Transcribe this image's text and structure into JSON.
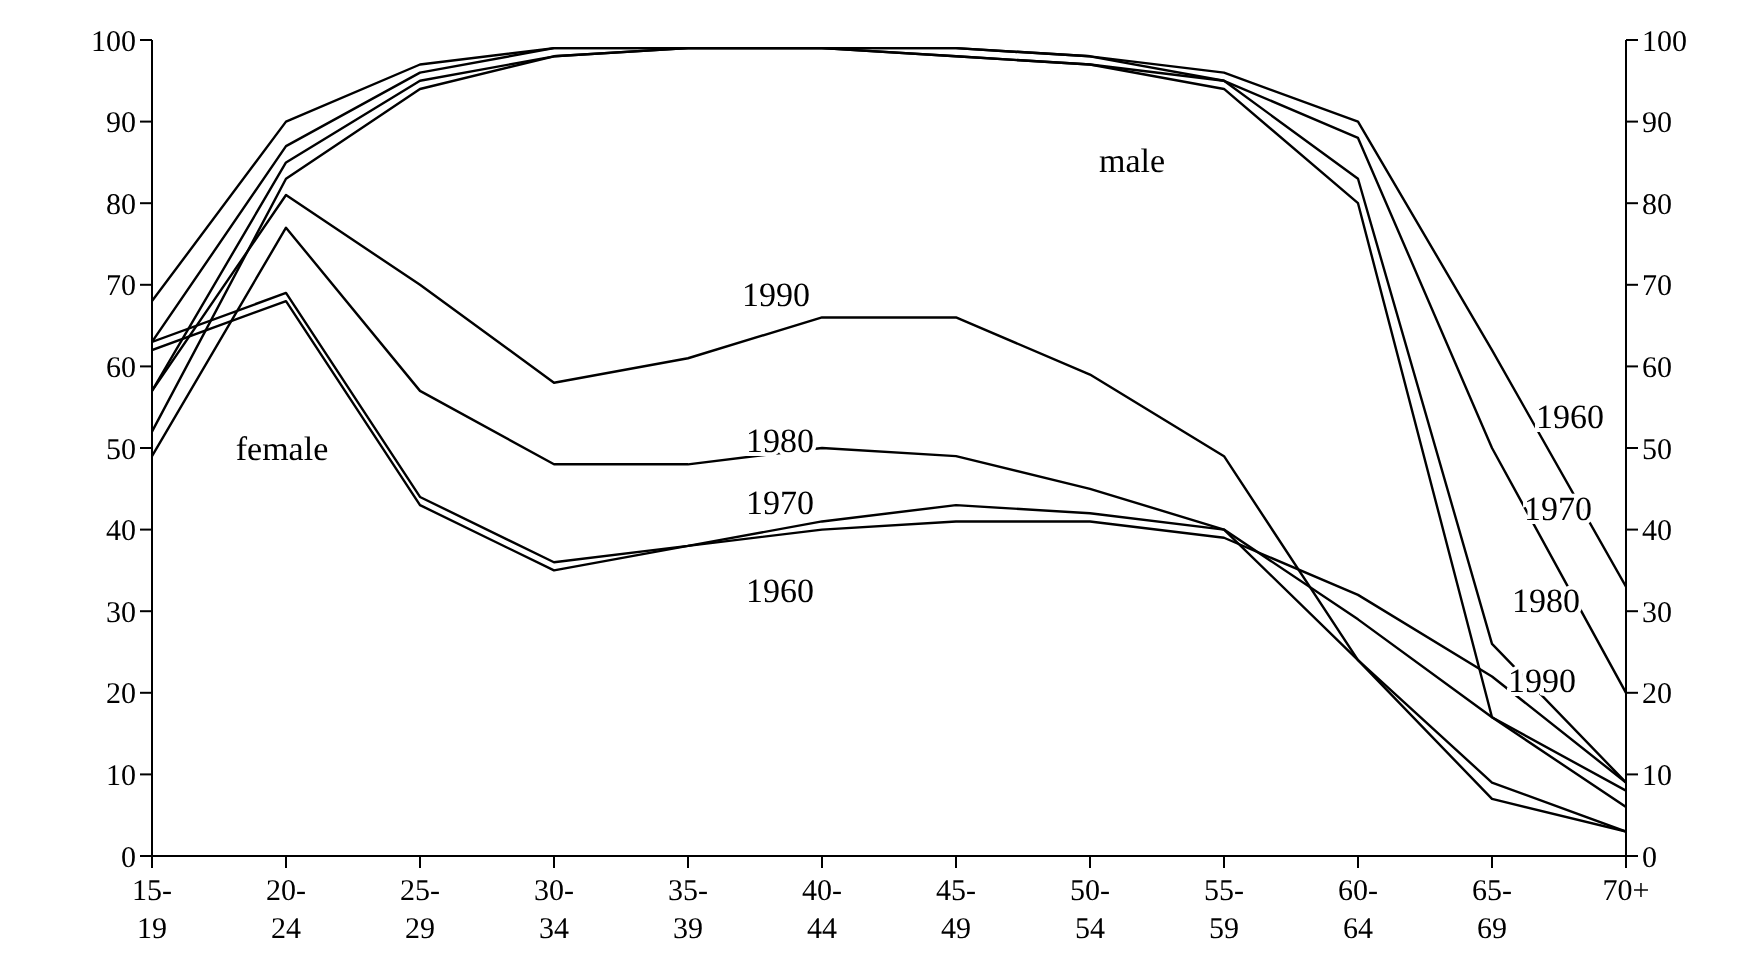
{
  "chart_data": {
    "type": "line",
    "categories": [
      "15-19",
      "20-24",
      "25-29",
      "30-34",
      "35-39",
      "40-44",
      "45-49",
      "50-54",
      "55-59",
      "60-64",
      "65-69",
      "70+"
    ],
    "series": [
      {
        "color": "#000000",
        "values": [
          68,
          90,
          97,
          99,
          99,
          99,
          99,
          98,
          96,
          90,
          62,
          33
        ]
      },
      {
        "color": "#000000",
        "values": [
          63,
          87,
          96,
          99,
          99,
          99,
          99,
          98,
          95,
          88,
          50,
          20
        ]
      },
      {
        "color": "#000000",
        "values": [
          57,
          85,
          95,
          98,
          99,
          99,
          98,
          97,
          95,
          83,
          26,
          9
        ]
      },
      {
        "color": "#000000",
        "values": [
          52,
          83,
          94,
          98,
          99,
          99,
          98,
          97,
          94,
          80,
          17,
          8
        ]
      },
      {
        "color": "#000000",
        "values": [
          62,
          68,
          43,
          35,
          38,
          40,
          41,
          41,
          39,
          32,
          22,
          9
        ]
      },
      {
        "color": "#000000",
        "values": [
          63,
          69,
          44,
          36,
          38,
          41,
          43,
          42,
          40,
          29,
          17,
          6
        ]
      },
      {
        "color": "#000000",
        "values": [
          49,
          77,
          57,
          48,
          48,
          50,
          49,
          45,
          40,
          24,
          7,
          3
        ]
      },
      {
        "color": "#000000",
        "values": [
          57,
          81,
          70,
          58,
          61,
          66,
          66,
          59,
          49,
          24,
          9,
          3
        ]
      }
    ],
    "annotations": [
      "male",
      "female",
      "1990",
      "1980",
      "1970",
      "1960",
      "1960",
      "1970",
      "1980",
      "1990"
    ],
    "ylim": [
      0,
      100
    ],
    "yticks": [
      0,
      10,
      20,
      30,
      40,
      50,
      60,
      70,
      80,
      90,
      100
    ],
    "y2lim": [
      0,
      100
    ],
    "y2ticks": [
      0,
      10,
      20,
      30,
      40,
      50,
      60,
      70,
      80,
      90,
      100
    ],
    "grid": false,
    "legend": false,
    "marker": "none",
    "line_style": "solid"
  }
}
